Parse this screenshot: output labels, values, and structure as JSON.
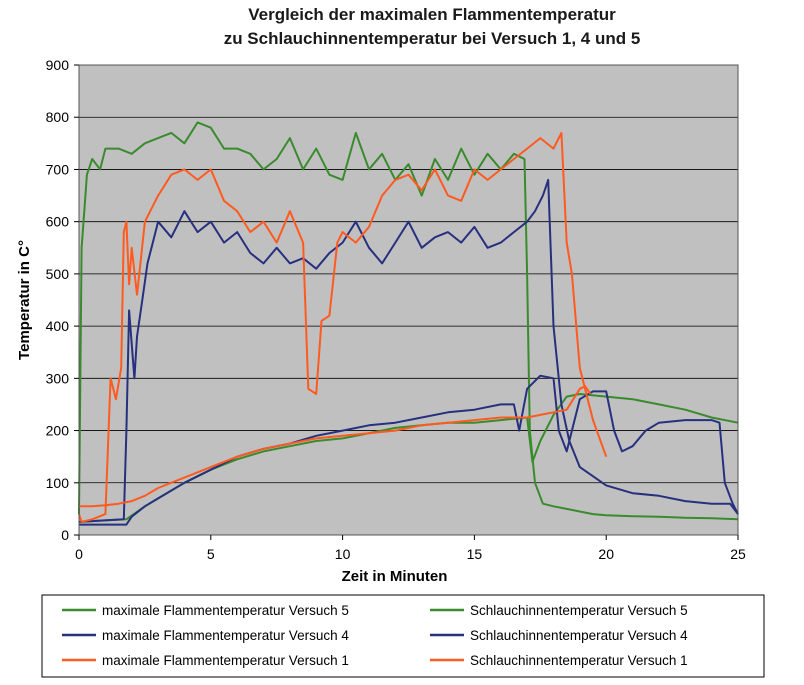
{
  "chart_data": {
    "type": "line",
    "title": [
      "Vergleich der maximalen Flammentemperatur",
      "zu Schlauchinnentemperatur bei Versuch 1, 4 und 5"
    ],
    "xlabel": "Zeit in Minuten",
    "ylabel": "Temperatur in C°",
    "xlim": [
      0,
      25
    ],
    "ylim": [
      0,
      900
    ],
    "xticks": [
      0,
      5,
      10,
      15,
      20,
      25
    ],
    "yticks": [
      0,
      100,
      200,
      300,
      400,
      500,
      600,
      700,
      800,
      900
    ],
    "grid": "horizontal",
    "plot_background": "#c0c0c0",
    "legend_position": "bottom",
    "series": [
      {
        "name": "maximale Flammentemperatur Versuch 5",
        "color": "#3a8a2e",
        "x": [
          0,
          0.1,
          0.2,
          0.3,
          0.5,
          0.8,
          1,
          1.5,
          2,
          2.5,
          3,
          3.5,
          4,
          4.5,
          5,
          5.5,
          6,
          6.5,
          7,
          7.5,
          8,
          8.5,
          9,
          9.5,
          10,
          10.5,
          11,
          11.5,
          12,
          12.5,
          13,
          13.5,
          14,
          14.5,
          15,
          15.5,
          16,
          16.5,
          16.9,
          17.0,
          17.1,
          17.3,
          17.6,
          18,
          18.5,
          19,
          19.5,
          20,
          21,
          22,
          23,
          24,
          25
        ],
        "y": [
          40,
          550,
          620,
          690,
          720,
          700,
          740,
          740,
          730,
          750,
          760,
          770,
          750,
          790,
          780,
          740,
          740,
          730,
          700,
          720,
          760,
          700,
          740,
          690,
          680,
          770,
          700,
          730,
          680,
          710,
          650,
          720,
          680,
          740,
          690,
          730,
          700,
          730,
          720,
          500,
          200,
          100,
          60,
          55,
          50,
          45,
          40,
          38,
          36,
          35,
          33,
          32,
          30
        ]
      },
      {
        "name": "Schlauchinnentemperatur Versuch 5",
        "color": "#3a8a2e",
        "x": [
          0,
          1,
          1.8,
          2.5,
          3,
          4,
          5,
          6,
          7,
          8,
          9,
          10,
          11,
          12,
          13,
          14,
          15,
          16,
          17,
          17.2,
          17.5,
          18,
          18.5,
          19,
          20,
          21,
          22,
          23,
          24,
          25
        ],
        "y": [
          25,
          28,
          30,
          55,
          70,
          100,
          125,
          145,
          160,
          170,
          180,
          185,
          195,
          205,
          210,
          215,
          215,
          220,
          225,
          140,
          180,
          230,
          265,
          270,
          265,
          260,
          250,
          240,
          225,
          215
        ]
      },
      {
        "name": "maximale Flammentemperatur Versuch 4",
        "color": "#27307f",
        "x": [
          0,
          1.7,
          1.8,
          1.9,
          2.1,
          2.2,
          2.4,
          2.6,
          2.8,
          3,
          3.5,
          4,
          4.5,
          5,
          5.5,
          6,
          6.5,
          7,
          7.5,
          8,
          8.5,
          9,
          9.5,
          10,
          10.5,
          11,
          11.5,
          12,
          12.5,
          13,
          13.5,
          14,
          14.5,
          15,
          15.5,
          16,
          16.5,
          17,
          17.3,
          17.6,
          17.8,
          18,
          18.3,
          18.6,
          19,
          20,
          21,
          22,
          23,
          24,
          24.7,
          25
        ],
        "y": [
          25,
          30,
          200,
          430,
          300,
          380,
          450,
          520,
          560,
          600,
          570,
          620,
          580,
          600,
          560,
          580,
          540,
          520,
          550,
          520,
          530,
          510,
          540,
          560,
          600,
          550,
          520,
          560,
          600,
          550,
          570,
          580,
          560,
          590,
          550,
          560,
          580,
          600,
          620,
          650,
          680,
          400,
          250,
          180,
          130,
          95,
          80,
          75,
          65,
          60,
          60,
          40
        ]
      },
      {
        "name": "Schlauchinnentemperatur Versuch 4",
        "color": "#27307f",
        "x": [
          0,
          1.8,
          2,
          2.5,
          3,
          4,
          5,
          6,
          7,
          8,
          9,
          10,
          11,
          12,
          13,
          14,
          15,
          16,
          16.5,
          16.7,
          17,
          17.5,
          18,
          18.2,
          18.5,
          19,
          19.5,
          20,
          20.3,
          20.6,
          21,
          21.5,
          22,
          23,
          24,
          24.3,
          24.5,
          24.8,
          25
        ],
        "y": [
          20,
          20,
          35,
          55,
          70,
          100,
          125,
          150,
          165,
          175,
          190,
          200,
          210,
          215,
          225,
          235,
          240,
          250,
          250,
          200,
          280,
          305,
          300,
          200,
          160,
          260,
          275,
          275,
          200,
          160,
          170,
          200,
          215,
          220,
          220,
          215,
          100,
          60,
          40
        ]
      },
      {
        "name": "maximale Flammentemperatur Versuch 1",
        "color": "#ff5a1f",
        "x": [
          0,
          0.1,
          0.5,
          1,
          1.2,
          1.4,
          1.6,
          1.7,
          1.8,
          1.9,
          2,
          2.2,
          2.5,
          3,
          3.5,
          4,
          4.5,
          5,
          5.5,
          6,
          6.5,
          7,
          7.5,
          8,
          8.5,
          8.7,
          9,
          9.2,
          9.5,
          9.8,
          10,
          10.5,
          11,
          11.5,
          12,
          12.5,
          13,
          13.5,
          14,
          14.5,
          15,
          15.5,
          16,
          16.5,
          17,
          17.5,
          18,
          18.3,
          18.5,
          18.7,
          19,
          19.3,
          19.5,
          20
        ],
        "y": [
          40,
          25,
          30,
          40,
          300,
          260,
          320,
          580,
          600,
          480,
          550,
          460,
          600,
          650,
          690,
          700,
          680,
          700,
          640,
          620,
          580,
          600,
          560,
          620,
          560,
          280,
          270,
          410,
          420,
          560,
          580,
          560,
          590,
          650,
          680,
          690,
          660,
          700,
          650,
          640,
          700,
          680,
          700,
          720,
          740,
          760,
          740,
          770,
          560,
          500,
          320,
          260,
          220,
          150
        ]
      },
      {
        "name": "Schlauchinnentemperatur Versuch 1",
        "color": "#ff5a1f",
        "x": [
          0,
          0.5,
          1,
          1.5,
          2,
          2.5,
          3,
          4,
          5,
          6,
          7,
          8,
          9,
          10,
          11,
          12,
          13,
          14,
          15,
          16,
          17,
          17.5,
          18,
          18.5,
          19,
          19.2,
          19.4
        ],
        "y": [
          55,
          55,
          57,
          60,
          65,
          75,
          90,
          110,
          130,
          150,
          165,
          175,
          185,
          190,
          195,
          200,
          210,
          215,
          220,
          225,
          225,
          230,
          235,
          240,
          280,
          285,
          270
        ]
      }
    ]
  }
}
